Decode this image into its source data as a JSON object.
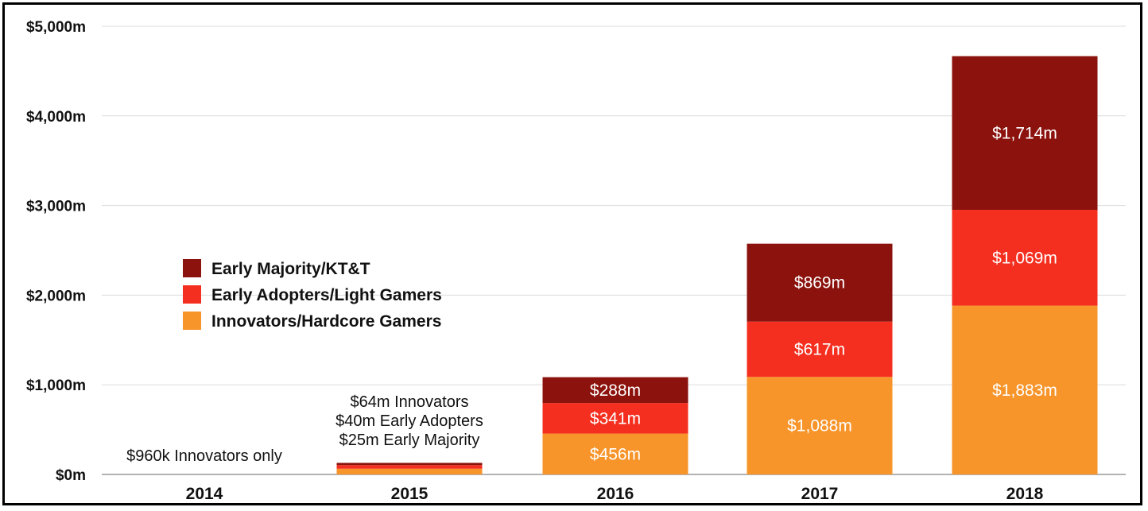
{
  "chart_data": {
    "type": "bar",
    "stacked": true,
    "categories": [
      "2014",
      "2015",
      "2016",
      "2017",
      "2018"
    ],
    "series": [
      {
        "name": "Innovators/Hardcore Gamers",
        "color": "#f7942a",
        "values": [
          0.96,
          64,
          456,
          1088,
          1883
        ],
        "labels": [
          "",
          "",
          "$456m",
          "$1,088m",
          "$1,883m"
        ]
      },
      {
        "name": "Early Adopters/Light Gamers",
        "color": "#f52f1f",
        "values": [
          0,
          40,
          341,
          617,
          1069
        ],
        "labels": [
          "",
          "",
          "$341m",
          "$617m",
          "$1,069m"
        ]
      },
      {
        "name": "Early Majority/KT&T",
        "color": "#8b120d",
        "values": [
          0,
          25,
          288,
          869,
          1714
        ],
        "labels": [
          "",
          "",
          "$288m",
          "$869m",
          "$1,714m"
        ]
      }
    ],
    "y_ticks": [
      0,
      1000,
      2000,
      3000,
      4000,
      5000
    ],
    "y_tick_labels": [
      "$0m",
      "$1,000m",
      "$2,000m",
      "$3,000m",
      "$4,000m",
      "$5,000m"
    ],
    "ylim": [
      0,
      5000
    ],
    "grid": true,
    "legend_order": [
      "Early Majority/KT&T",
      "Early Adopters/Light Gamers",
      "Innovators/Hardcore Gamers"
    ],
    "legend_position": "middle-left",
    "annotations": {
      "2014": [
        "$960k Innovators only"
      ],
      "2015": [
        "$64m Innovators",
        "$40m Early Adopters",
        "$25m Early Majority"
      ]
    },
    "title": "",
    "xlabel": "",
    "ylabel": ""
  }
}
